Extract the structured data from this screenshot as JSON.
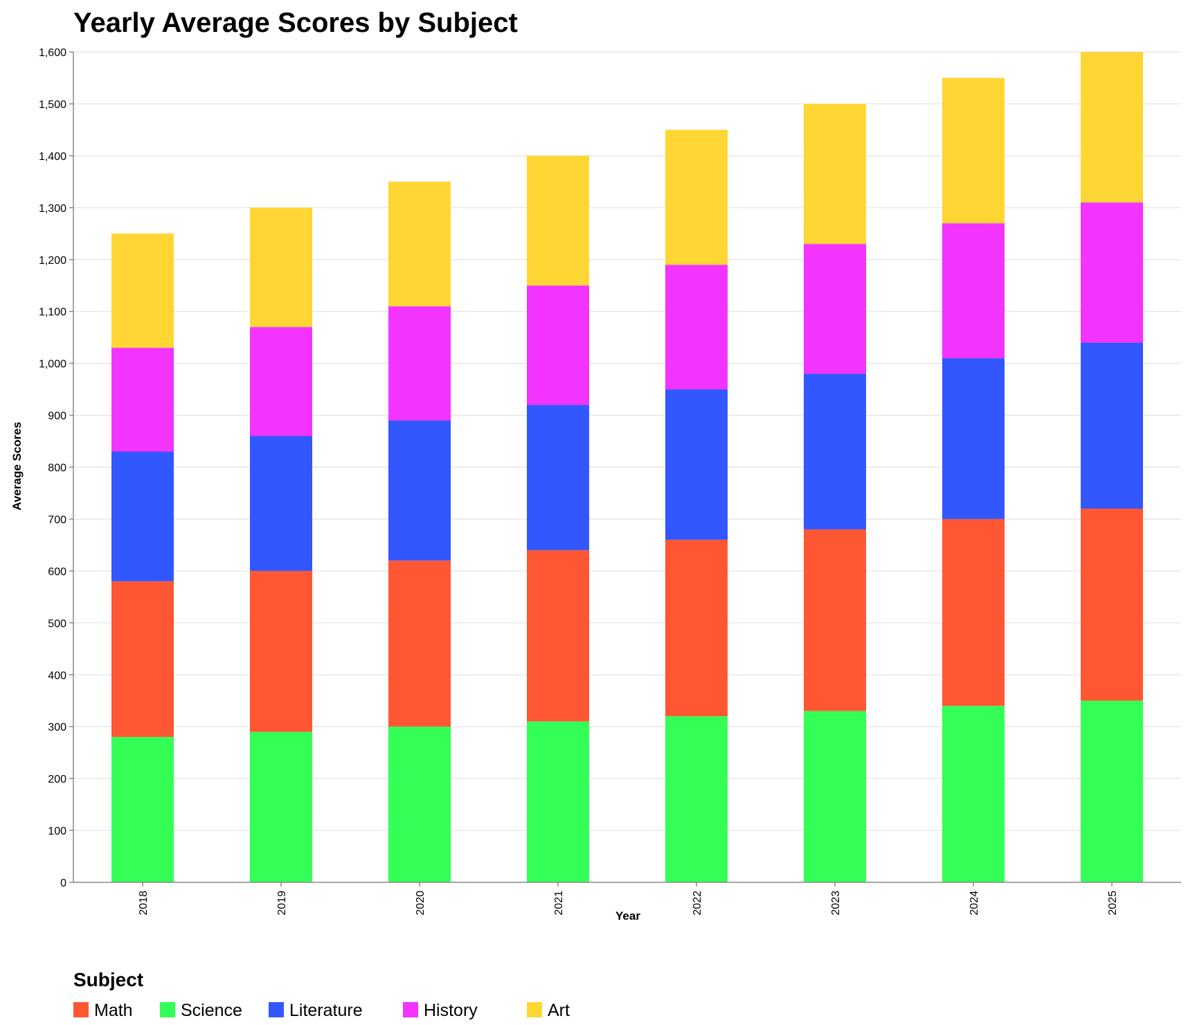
{
  "chart_data": {
    "type": "bar",
    "stacked": true,
    "title": "Yearly Average Scores by Subject",
    "xlabel": "Year",
    "ylabel": "Average Scores",
    "ylim": [
      0,
      1600
    ],
    "yticks": [
      0,
      100,
      200,
      300,
      400,
      500,
      600,
      700,
      800,
      900,
      1000,
      1100,
      1200,
      1300,
      1400,
      1500,
      1600
    ],
    "grid": true,
    "legend_position": "bottom-left",
    "legend_title": "Subject",
    "categories": [
      "2018",
      "2019",
      "2020",
      "2021",
      "2022",
      "2023",
      "2024",
      "2025"
    ],
    "stack_order": [
      "Science",
      "Math",
      "Literature",
      "History",
      "Art"
    ],
    "legend_order": [
      "Math",
      "Science",
      "Literature",
      "History",
      "Art"
    ],
    "series": [
      {
        "name": "Math",
        "color": "#ff5733",
        "values": [
          300,
          310,
          320,
          330,
          340,
          350,
          360,
          370
        ]
      },
      {
        "name": "Science",
        "color": "#33ff57",
        "values": [
          280,
          290,
          300,
          310,
          320,
          330,
          340,
          350
        ]
      },
      {
        "name": "Literature",
        "color": "#3357ff",
        "values": [
          250,
          260,
          270,
          280,
          290,
          300,
          310,
          320
        ]
      },
      {
        "name": "History",
        "color": "#f333ff",
        "values": [
          200,
          210,
          220,
          230,
          240,
          250,
          260,
          270
        ]
      },
      {
        "name": "Art",
        "color": "#ffd633",
        "values": [
          220,
          230,
          240,
          250,
          260,
          270,
          280,
          290
        ]
      }
    ]
  }
}
